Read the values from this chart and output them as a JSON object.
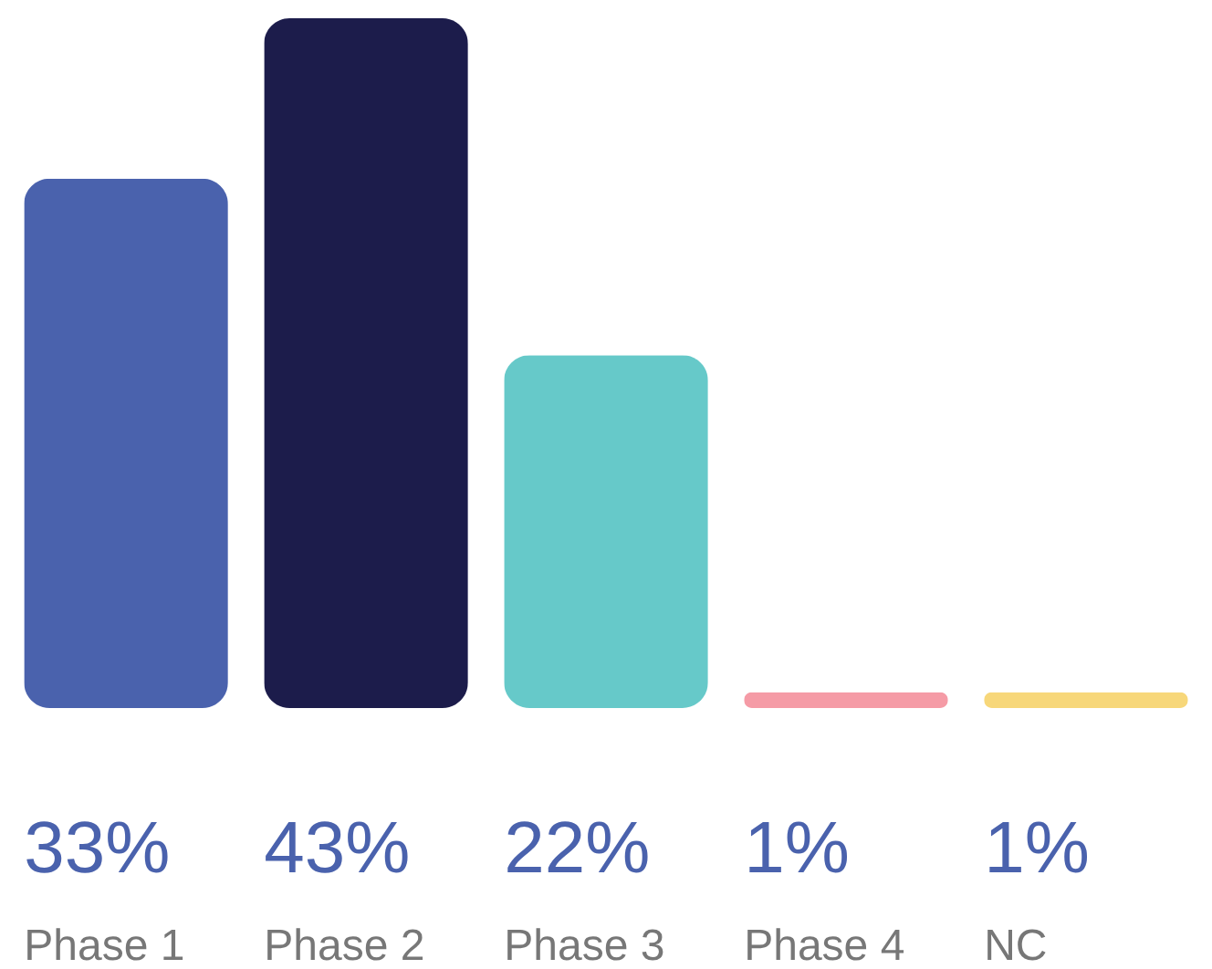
{
  "chart_data": {
    "type": "bar",
    "categories": [
      "Phase 1",
      "Phase 2",
      "Phase 3",
      "Phase 4",
      "NC"
    ],
    "values": [
      33,
      43,
      22,
      1,
      1
    ],
    "colors": [
      "#4a62ad",
      "#1c1c4b",
      "#66c9c9",
      "#f59ba6",
      "#f7d77a"
    ],
    "value_labels": [
      "33%",
      "43%",
      "22%",
      "1%",
      "1%"
    ],
    "ylim": [
      0,
      43
    ]
  }
}
